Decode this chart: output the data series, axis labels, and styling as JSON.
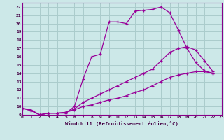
{
  "xlabel": "Windchill (Refroidissement éolien,°C)",
  "bg_color": "#cce8e8",
  "grid_color": "#aacccc",
  "line_color": "#990099",
  "xlim": [
    0,
    23
  ],
  "ylim": [
    9,
    22.5
  ],
  "xticks": [
    0,
    1,
    2,
    3,
    4,
    5,
    6,
    7,
    8,
    9,
    10,
    11,
    12,
    13,
    14,
    15,
    16,
    17,
    18,
    19,
    20,
    21,
    22,
    23
  ],
  "yticks": [
    9,
    10,
    11,
    12,
    13,
    14,
    15,
    16,
    17,
    18,
    19,
    20,
    21,
    22
  ],
  "line1_x": [
    0,
    1,
    2,
    3,
    4,
    5,
    6,
    7,
    8,
    9,
    10,
    11,
    12,
    13,
    14,
    15,
    16,
    17,
    18,
    19,
    20,
    21,
    22
  ],
  "line1_y": [
    9.8,
    9.6,
    9.0,
    9.2,
    9.2,
    9.2,
    10.0,
    13.3,
    16.0,
    16.3,
    20.2,
    20.2,
    20.0,
    21.5,
    21.6,
    21.7,
    22.0,
    21.3,
    19.2,
    17.0,
    15.3,
    14.3,
    14.0
  ],
  "line2_x": [
    0,
    1,
    2,
    3,
    4,
    5,
    6,
    7,
    8,
    9,
    10,
    11,
    12,
    13,
    14,
    15,
    16,
    17,
    18,
    19,
    20,
    21,
    22
  ],
  "line2_y": [
    9.8,
    9.5,
    9.0,
    9.2,
    9.2,
    9.3,
    9.7,
    10.5,
    11.0,
    11.5,
    12.0,
    12.5,
    13.0,
    13.5,
    14.0,
    14.5,
    15.5,
    16.5,
    17.0,
    17.2,
    16.8,
    15.5,
    14.2
  ],
  "line3_x": [
    0,
    1,
    2,
    3,
    4,
    5,
    6,
    7,
    8,
    9,
    10,
    11,
    12,
    13,
    14,
    15,
    16,
    17,
    18,
    19,
    20,
    21,
    22
  ],
  "line3_y": [
    9.8,
    9.5,
    9.0,
    9.2,
    9.2,
    9.3,
    9.6,
    10.0,
    10.2,
    10.5,
    10.8,
    11.0,
    11.3,
    11.7,
    12.0,
    12.5,
    13.0,
    13.5,
    13.8,
    14.0,
    14.2,
    14.2,
    14.0
  ]
}
